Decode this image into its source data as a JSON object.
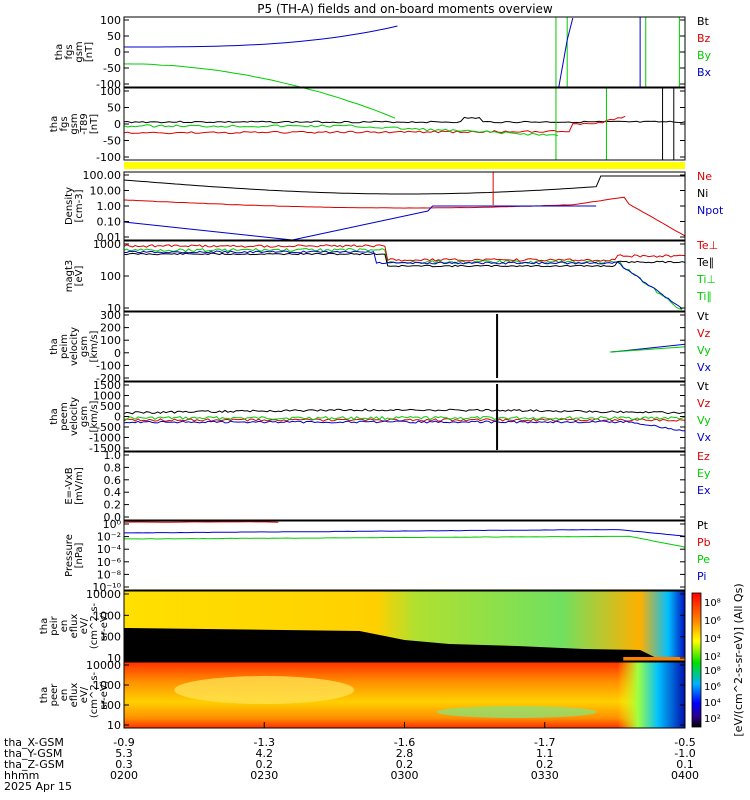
{
  "title": "P5 (TH-A) fields and on-board moments overview",
  "colors": {
    "black": "#000000",
    "red": "#dd0000",
    "green": "#00cc00",
    "blue": "#0000cc",
    "yellow": "#ffff00"
  },
  "chart_data": {
    "type": "line",
    "time_axis": {
      "ticks": [
        "0200",
        "0230",
        "0300",
        "0330",
        "0400"
      ],
      "ephemeris_labels": [
        "tha_X-GSM",
        "tha_Y-GSM",
        "tha_Z-GSM",
        "hhmm",
        "2025 Apr 15"
      ],
      "x_gsm": [
        "-0.9",
        "-1.3",
        "-1.6",
        "-1.7",
        "-0.5"
      ],
      "y_gsm": [
        "5.3",
        "4.2",
        "2.8",
        "1.1",
        "-1.0"
      ],
      "z_gsm": [
        "0.3",
        "0.2",
        "0.2",
        "0.2",
        "0.1"
      ]
    },
    "panels": [
      {
        "id": "fgs-gsm",
        "ylabel": [
          "tha",
          "fgs",
          "gsm",
          "[nT]"
        ],
        "yticks": [
          "100",
          "50",
          "0",
          "-50",
          "-100"
        ],
        "ylim": [
          -100,
          100
        ],
        "legend": [
          {
            "name": "Bt",
            "color": "#000000"
          },
          {
            "name": "Bz",
            "color": "#dd0000"
          },
          {
            "name": "By",
            "color": "#00cc00"
          },
          {
            "name": "Bx",
            "color": "#0000cc"
          }
        ]
      },
      {
        "id": "fgs-gsm-t89",
        "ylabel": [
          "tha",
          "fgs",
          "gsm",
          "-T89",
          "[nT]"
        ],
        "yticks": [
          "100",
          "50",
          "0",
          "-50",
          "-100"
        ],
        "ylim": [
          -125,
          125
        ],
        "legend": []
      },
      {
        "id": "density",
        "ylabel": [
          "Density",
          "[cm-3]"
        ],
        "yticks": [
          "100.00",
          "10.00",
          "1.00",
          "0.10",
          "0.01"
        ],
        "ylog": true,
        "legend": [
          {
            "name": "Ne",
            "color": "#dd0000"
          },
          {
            "name": "Ni",
            "color": "#000000"
          },
          {
            "name": "Npot",
            "color": "#0000cc"
          }
        ]
      },
      {
        "id": "temperature",
        "ylabel": [
          "magt3",
          "[eV]"
        ],
        "yticks": [
          "1000",
          "100",
          "10"
        ],
        "ylog": true,
        "legend": [
          {
            "name": "Te⊥",
            "color": "#dd0000"
          },
          {
            "name": "Te∥",
            "color": "#000000"
          },
          {
            "name": "Ti⊥",
            "color": "#00cc00"
          },
          {
            "name": "Ti∥",
            "color": "#00cc00"
          }
        ]
      },
      {
        "id": "peim-velocity",
        "ylabel": [
          "tha",
          "peim",
          "velocity",
          "gsm",
          "[km/s]"
        ],
        "yticks": [
          "300",
          "200",
          "100",
          "0",
          "-100",
          "-200"
        ],
        "ylim": [
          -200,
          300
        ],
        "legend": [
          {
            "name": "Vt",
            "color": "#000000"
          },
          {
            "name": "Vz",
            "color": "#dd0000"
          },
          {
            "name": "Vy",
            "color": "#00cc00"
          },
          {
            "name": "Vx",
            "color": "#0000cc"
          }
        ]
      },
      {
        "id": "peem-velocity",
        "ylabel": [
          "tha",
          "peem",
          "velocity",
          "gsm",
          "[km/s]"
        ],
        "yticks": [
          "1500",
          "1000",
          "500",
          "0",
          "-500",
          "-1000",
          "-1500"
        ],
        "ylim": [
          -1500,
          1500
        ],
        "legend": [
          {
            "name": "Vt",
            "color": "#000000"
          },
          {
            "name": "Vz",
            "color": "#dd0000"
          },
          {
            "name": "Vy",
            "color": "#00cc00"
          },
          {
            "name": "Vx",
            "color": "#0000cc"
          }
        ]
      },
      {
        "id": "efield",
        "ylabel": [
          "E=-VxB",
          "[mV/m]"
        ],
        "yticks": [
          "1.0",
          "0.8",
          "0.6",
          "0.4",
          "0.2",
          "0.0"
        ],
        "ylim": [
          0,
          1
        ],
        "legend": [
          {
            "name": "Ez",
            "color": "#dd0000"
          },
          {
            "name": "Ey",
            "color": "#00cc00"
          },
          {
            "name": "Ex",
            "color": "#0000cc"
          }
        ]
      },
      {
        "id": "pressure",
        "ylabel": [
          "Pressure",
          "[nPa]"
        ],
        "yticks": [
          "10⁰",
          "10⁻²",
          "10⁻⁴",
          "10⁻⁶",
          "10⁻⁸",
          "10⁻¹⁰"
        ],
        "ylog": true,
        "legend": [
          {
            "name": "Pt",
            "color": "#000000"
          },
          {
            "name": "Pb",
            "color": "#dd0000"
          },
          {
            "name": "Pe",
            "color": "#00cc00"
          },
          {
            "name": "Pi",
            "color": "#0000cc"
          }
        ]
      },
      {
        "id": "peir-spectrogram",
        "ylabel": [
          "tha",
          "peir",
          "en",
          "eflux",
          "eV/",
          "(cm^2-s-",
          "sr-eV)"
        ],
        "yticks": [
          "10000",
          "1000",
          "100",
          "10"
        ],
        "ylog": true,
        "legend": []
      },
      {
        "id": "peer-spectrogram",
        "ylabel": [
          "tha",
          "peer",
          "en",
          "eflux",
          "eV/",
          "(cm^2-s-",
          "sr-eV)"
        ],
        "yticks": [
          "10000",
          "1000",
          "100",
          "10"
        ],
        "ylog": true,
        "legend": []
      }
    ],
    "colorbar": {
      "ticks": [
        "10⁸",
        "10⁶",
        "10⁴",
        "10²"
      ],
      "label": "[eV/(cm^2-s-sr-eV)] (All Qs)"
    }
  }
}
